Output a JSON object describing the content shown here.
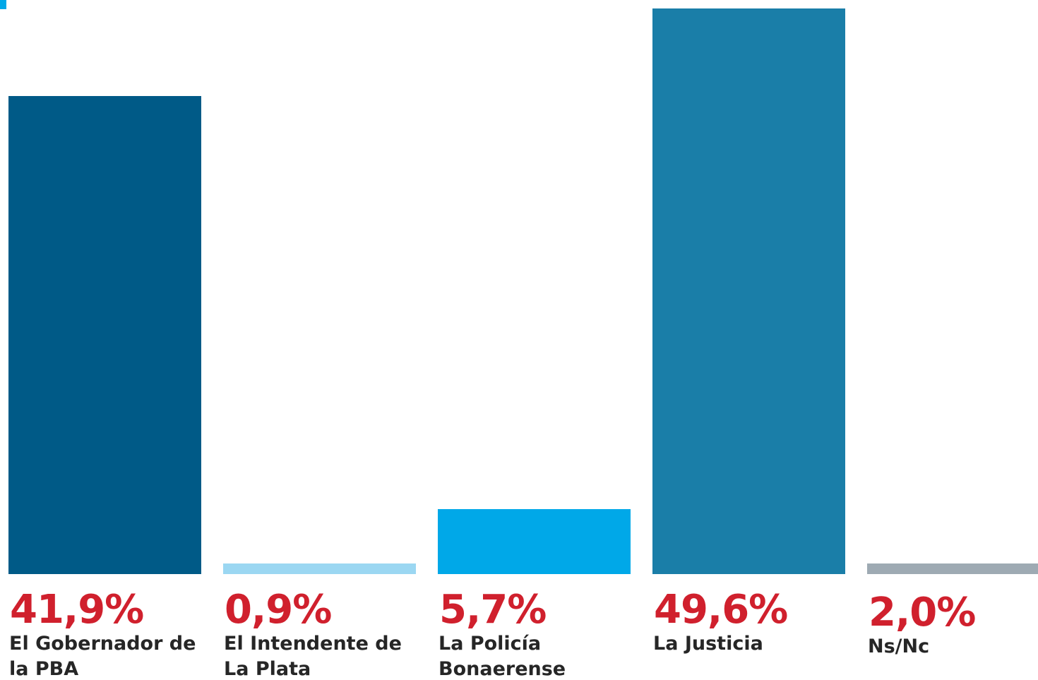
{
  "chart_data": {
    "type": "bar",
    "title": "",
    "xlabel": "",
    "ylabel": "",
    "ylim": [
      0,
      50
    ],
    "grid": false,
    "categories": [
      "El Gobernador de la PBA",
      "El Intendente de La Plata",
      "La Policía Bonaerense",
      "La Justicia",
      "Ns/Nc"
    ],
    "values": [
      41.9,
      0.9,
      5.7,
      49.6,
      2.0
    ],
    "value_labels": [
      "41,9%",
      "0,9%",
      "5,7%",
      "49,6%",
      "2,0%"
    ],
    "bar_colors": [
      "#005a87",
      "#9bd7f2",
      "#00a8e8",
      "#1a7ea8",
      "#9eaab3"
    ],
    "value_label_color": "#d0202d",
    "accent_color": "#00a8e8"
  }
}
